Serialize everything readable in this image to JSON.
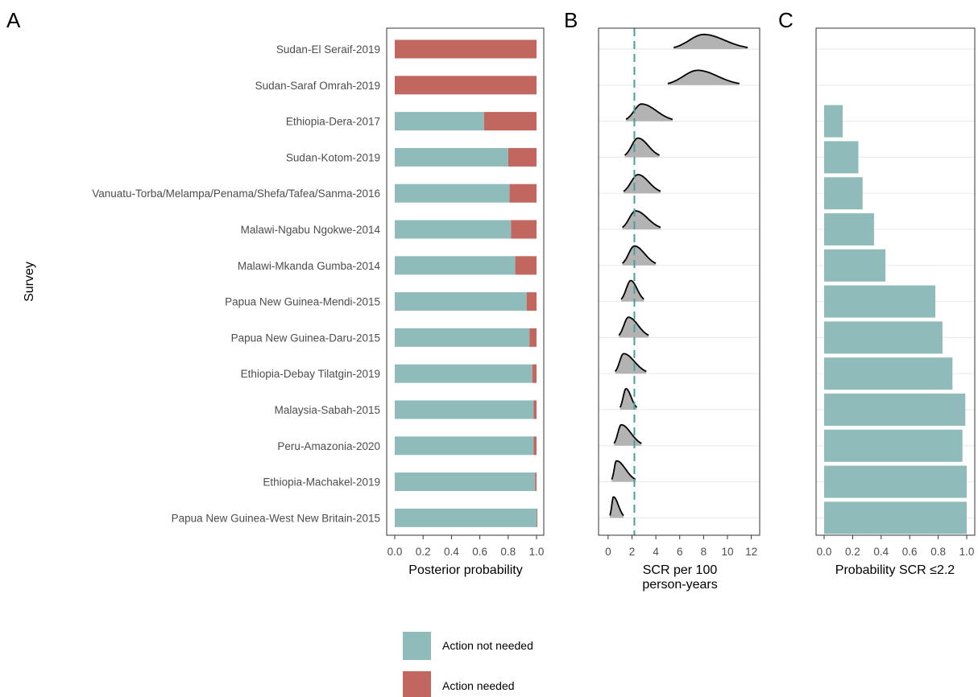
{
  "colors": {
    "not_needed": "#8fbcbb",
    "needed": "#c1675f",
    "density_fill": "#b3b3b3",
    "threshold_line": "#4b9e9a",
    "grid": "#ebebeb"
  },
  "panel_letters": [
    "A",
    "B",
    "C"
  ],
  "y_axis_title": "Survey",
  "legend": {
    "not_needed": "Action not needed",
    "needed": "Action needed"
  },
  "chart_data": [
    {
      "panel": "A",
      "type": "bar",
      "stacked": true,
      "orientation": "horizontal",
      "xlabel": "Posterior probability",
      "xlim": [
        0,
        1
      ],
      "xticks": [
        "0.0",
        "0.2",
        "0.4",
        "0.6",
        "0.8",
        "1.0"
      ],
      "categories": [
        "Sudan-El Seraif-2019",
        "Sudan-Saraf Omrah-2019",
        "Ethiopia-Dera-2017",
        "Sudan-Kotom-2019",
        "Vanuatu-Torba/Melampa/Penama/Shefa/Tafea/Sanma-2016",
        "Malawi-Ngabu Ngokwe-2014",
        "Malawi-Mkanda Gumba-2014",
        "Papua New Guinea-Mendi-2015",
        "Papua New Guinea-Daru-2015",
        "Ethiopia-Debay Tilatgin-2019",
        "Malaysia-Sabah-2015",
        "Peru-Amazonia-2020",
        "Ethiopia-Machakel-2019",
        "Papua New Guinea-West New Britain-2015"
      ],
      "series": [
        {
          "name": "Action not needed",
          "values": [
            0.0,
            0.0,
            0.63,
            0.8,
            0.81,
            0.82,
            0.85,
            0.93,
            0.95,
            0.97,
            0.98,
            0.98,
            0.99,
            1.0
          ]
        },
        {
          "name": "Action needed",
          "values": [
            1.0,
            1.0,
            0.37,
            0.2,
            0.19,
            0.18,
            0.15,
            0.07,
            0.05,
            0.03,
            0.02,
            0.02,
            0.01,
            0.005
          ]
        }
      ]
    },
    {
      "panel": "B",
      "type": "area",
      "subtype": "ridgeline",
      "xlabel": "SCR per 100\nperson-years",
      "xlim": [
        -0.8,
        12.7
      ],
      "xticks": [
        "0",
        "2",
        "4",
        "6",
        "8",
        "10",
        "12"
      ],
      "threshold": 2.2,
      "densities": [
        {
          "mode": 8.0,
          "min": 5.5,
          "max": 11.7
        },
        {
          "mode": 7.5,
          "min": 5.0,
          "max": 11.0
        },
        {
          "mode": 2.8,
          "min": 1.5,
          "max": 5.4
        },
        {
          "mode": 2.5,
          "min": 1.4,
          "max": 4.3
        },
        {
          "mode": 2.5,
          "min": 1.3,
          "max": 4.4
        },
        {
          "mode": 2.3,
          "min": 1.2,
          "max": 4.4
        },
        {
          "mode": 2.2,
          "min": 1.2,
          "max": 4.0
        },
        {
          "mode": 1.9,
          "min": 1.1,
          "max": 3.0
        },
        {
          "mode": 1.7,
          "min": 0.9,
          "max": 3.4
        },
        {
          "mode": 1.3,
          "min": 0.6,
          "max": 3.2
        },
        {
          "mode": 1.5,
          "min": 1.0,
          "max": 2.4
        },
        {
          "mode": 1.1,
          "min": 0.5,
          "max": 2.8
        },
        {
          "mode": 0.7,
          "min": 0.3,
          "max": 2.3
        },
        {
          "mode": 0.45,
          "min": 0.15,
          "max": 1.3
        }
      ]
    },
    {
      "panel": "C",
      "type": "bar",
      "orientation": "horizontal",
      "xlabel": "Probability SCR ≤2.2",
      "xlim": [
        0,
        1
      ],
      "xticks": [
        "0.0",
        "0.2",
        "0.4",
        "0.6",
        "0.8",
        "1.0"
      ],
      "values": [
        0.0,
        0.0,
        0.13,
        0.24,
        0.27,
        0.35,
        0.43,
        0.78,
        0.83,
        0.9,
        0.99,
        0.97,
        1.0,
        1.0
      ]
    }
  ]
}
